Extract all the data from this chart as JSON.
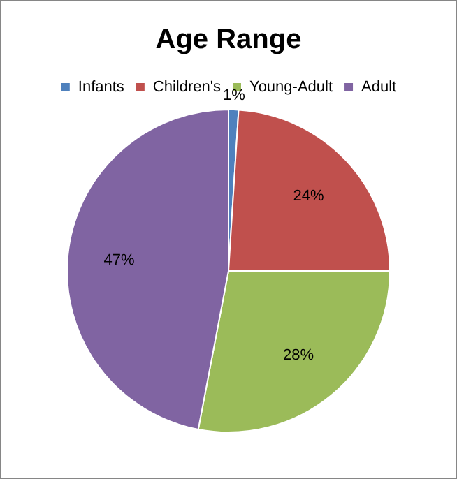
{
  "chart_data": {
    "type": "pie",
    "title": "Age Range",
    "categories": [
      "Infants",
      "Children's",
      "Young-Adult",
      "Adult"
    ],
    "values": [
      1,
      24,
      28,
      47
    ],
    "colors": [
      "#4f81bd",
      "#c0504d",
      "#9bbb59",
      "#8064a2"
    ],
    "value_labels": [
      "1%",
      "24%",
      "28%",
      "47%"
    ],
    "legend": "top"
  }
}
